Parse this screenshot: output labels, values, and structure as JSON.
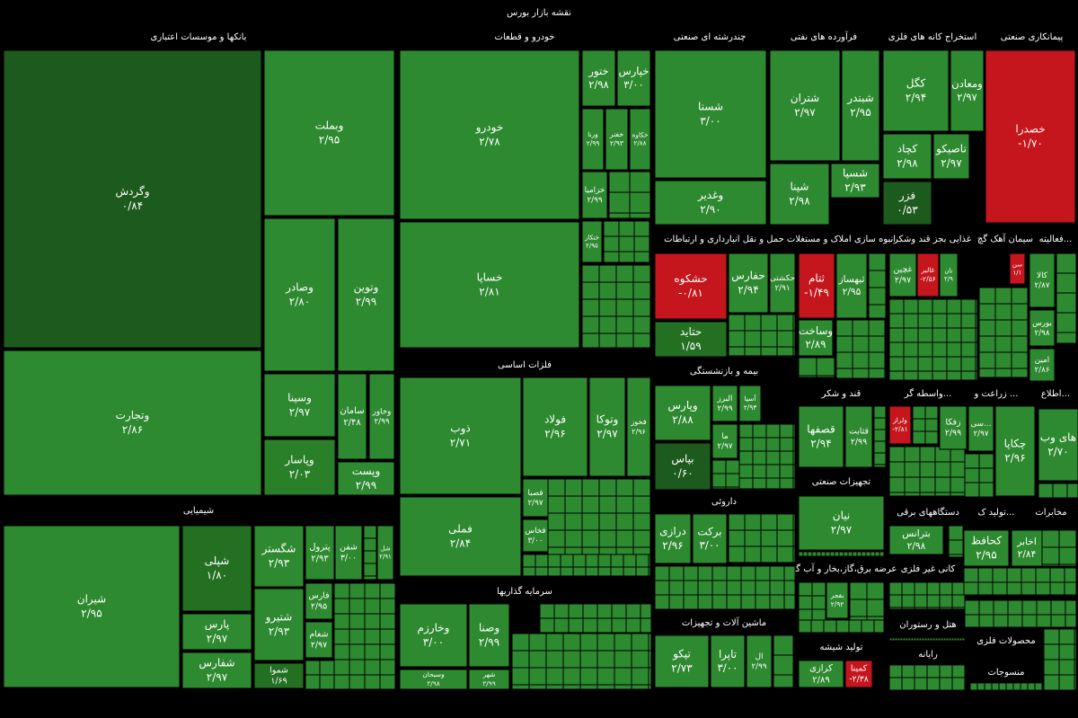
{
  "chart_data": {
    "type": "treemap",
    "title": "نقشه بازار بورس",
    "groups": [
      {
        "name": "بانکها و موسسات اعتباری",
        "tiles": [
          {
            "name": "وگردش",
            "value": 0.84,
            "value_label": "۰/۸۴",
            "color": "#1d5a1d"
          },
          {
            "name": "وتجارت",
            "value": 2.86,
            "value_label": "۲/۸۶",
            "color": "#2e8a30"
          },
          {
            "name": "وبملت",
            "value": 2.95,
            "value_label": "۲/۹۵",
            "color": "#2e8a30"
          },
          {
            "name": "وصادر",
            "value": 2.8,
            "value_label": "۲/۸۰",
            "color": "#2e8a30"
          },
          {
            "name": "وتوین",
            "value": 2.99,
            "value_label": "۲/۹۹",
            "color": "#2e8a30"
          },
          {
            "name": "وسینا",
            "value": 2.97,
            "value_label": "۲/۹۷",
            "color": "#2e8a30"
          },
          {
            "name": "سامان",
            "value": 2.48,
            "value_label": "۲/۴۸",
            "color": "#2e8a30"
          },
          {
            "name": "وخاور",
            "value": 2.99,
            "value_label": "۲/۹۹",
            "color": "#2e8a30"
          },
          {
            "name": "وپاسار",
            "value": 2.03,
            "value_label": "۲/۰۳",
            "color": "#2a8029"
          },
          {
            "name": "وپست",
            "value": 2.99,
            "value_label": "۲/۹۹",
            "color": "#2e8a30"
          }
        ]
      },
      {
        "name": "خودرو و قطعات",
        "tiles": [
          {
            "name": "خودرو",
            "value": 2.78,
            "value_label": "۲/۷۸",
            "color": "#2e8a30"
          },
          {
            "name": "خساپا",
            "value": 2.81,
            "value_label": "۲/۸۱",
            "color": "#2e8a30"
          },
          {
            "name": "ختور",
            "value": 2.98,
            "value_label": "۲/۹۸",
            "color": "#2e8a30"
          },
          {
            "name": "خپارس",
            "value": 3.0,
            "value_label": "۳/۰۰",
            "color": "#2e8a30"
          },
          {
            "name": "ورنا",
            "value": 2.99,
            "value_label": "۲/۹۹",
            "color": "#2e8a30"
          },
          {
            "name": "خفنر",
            "value": 2.93,
            "value_label": "۲/۹۳",
            "color": "#2e8a30"
          },
          {
            "name": "خکاوه",
            "value": 2.88,
            "value_label": "۲/۸۸",
            "color": "#2e8a30"
          },
          {
            "name": "خزامیا",
            "value": 2.99,
            "value_label": "۲/۹۹",
            "color": "#2e8a30"
          },
          {
            "name": "ختکار",
            "value": 2.95,
            "value_label": "۲/۹۵",
            "color": "#2e8a30"
          }
        ]
      },
      {
        "name": "چندرشته ای صنعتی",
        "tiles": [
          {
            "name": "شستا",
            "value": 3.0,
            "value_label": "۳/۰۰",
            "color": "#2e8a30"
          },
          {
            "name": "وغدیر",
            "value": 2.9,
            "value_label": "۲/۹۰",
            "color": "#2e8a30"
          }
        ]
      },
      {
        "name": "فرآورده های نفتی",
        "tiles": [
          {
            "name": "شتران",
            "value": 2.97,
            "value_label": "۲/۹۷",
            "color": "#2e8a30"
          },
          {
            "name": "شبندر",
            "value": 2.95,
            "value_label": "۲/۹۵",
            "color": "#2e8a30"
          },
          {
            "name": "شپنا",
            "value": 2.98,
            "value_label": "۲/۹۸",
            "color": "#2e8a30"
          },
          {
            "name": "شسپا",
            "value": 2.93,
            "value_label": "۲/۹۳",
            "color": "#2e8a30"
          }
        ]
      },
      {
        "name": "استخراج کانه های فلزی",
        "tiles": [
          {
            "name": "کگل",
            "value": 2.94,
            "value_label": "۲/۹۴",
            "color": "#2e8a30"
          },
          {
            "name": "ومعادن",
            "value": 2.97,
            "value_label": "۲/۹۷",
            "color": "#2e8a30"
          },
          {
            "name": "کچاد",
            "value": 2.98,
            "value_label": "۲/۹۸",
            "color": "#2e8a30"
          },
          {
            "name": "تاصیکو",
            "value": 2.97,
            "value_label": "۲/۹۷",
            "color": "#2e8a30"
          },
          {
            "name": "فزر",
            "value": 0.53,
            "value_label": "۰/۵۳",
            "color": "#1d5a1d"
          }
        ]
      },
      {
        "name": "پیمانکاری صنعتی",
        "tiles": [
          {
            "name": "خصدرا",
            "value": -1.7,
            "value_label": "-۱/۷۰",
            "color": "#c4161c"
          }
        ]
      },
      {
        "name": "حمل و نقل انبارداری و ارتباطات",
        "tiles": [
          {
            "name": "حشکوه",
            "value": -0.81,
            "value_label": "-۰/۸۱",
            "color": "#c4161c"
          },
          {
            "name": "حفارس",
            "value": 2.94,
            "value_label": "۲/۹۴",
            "color": "#2e8a30"
          },
          {
            "name": "حکشتی",
            "value": 2.91,
            "value_label": "۲/۹۱",
            "color": "#2e8a30"
          },
          {
            "name": "حتاید",
            "value": 1.59,
            "value_label": "۱/۵۹",
            "color": "#237023"
          }
        ]
      },
      {
        "name": "انبوه سازی املاک و مستغلات",
        "tiles": [
          {
            "name": "ثتام",
            "value": -1.49,
            "value_label": "-۱/۴۹",
            "color": "#c4161c"
          },
          {
            "name": "ثبهساز",
            "value": 2.95,
            "value_label": "۲/۹۵",
            "color": "#2e8a30"
          },
          {
            "name": "وساخت",
            "value": 2.89,
            "value_label": "۲/۸۹",
            "color": "#2e8a30"
          }
        ]
      },
      {
        "name": "غذایی بجز قند وشکر",
        "tiles": [
          {
            "name": "غچین",
            "value": 2.97,
            "value_label": "۲/۹۷",
            "color": "#2e8a30"
          },
          {
            "name": "غالبر",
            "value": -2.56,
            "value_label": "-۲/۵۶",
            "color": "#c4161c"
          },
          {
            "name": "نان",
            "value": 2.9,
            "value_label": "۲/۹",
            "color": "#2e8a30"
          }
        ]
      },
      {
        "name": "سیمان آهک گچ",
        "tiles": [
          {
            "name": "سن",
            "value": 1.1,
            "value_label": "۱/۱",
            "color": "#c4161c"
          }
        ]
      },
      {
        "name": "فعالیته...",
        "tiles": [
          {
            "name": "کالا",
            "value": 2.87,
            "value_label": "۲/۸۷",
            "color": "#2e8a30"
          },
          {
            "name": "بورس",
            "value": 2.98,
            "value_label": "۲/۹۸",
            "color": "#2e8a30"
          },
          {
            "name": "امین",
            "value": 2.86,
            "value_label": "۲/۸۶",
            "color": "#2e8a30"
          }
        ]
      },
      {
        "name": "فلزات اساسی",
        "tiles": [
          {
            "name": "ذوب",
            "value": 2.71,
            "value_label": "۲/۷۱",
            "color": "#2e8a30"
          },
          {
            "name": "فولاد",
            "value": 2.96,
            "value_label": "۲/۹۶",
            "color": "#2e8a30"
          },
          {
            "name": "وتوکا",
            "value": 2.97,
            "value_label": "۲/۹۷",
            "color": "#2e8a30"
          },
          {
            "name": "فخوز",
            "value": 2.96,
            "value_label": "۲/۹۶",
            "color": "#2e8a30"
          },
          {
            "name": "فملی",
            "value": 2.84,
            "value_label": "۲/۸۴",
            "color": "#2e8a30"
          },
          {
            "name": "فصبا",
            "value": 2.97,
            "value_label": "۲/۹۷",
            "color": "#2e8a30"
          },
          {
            "name": "فخاس",
            "value": 3.0,
            "value_label": "۳/۰۰",
            "color": "#2e8a30"
          }
        ]
      },
      {
        "name": "بیمه و بازنشستگی",
        "tiles": [
          {
            "name": "وپارس",
            "value": 2.88,
            "value_label": "۲/۸۸",
            "color": "#2e8a30"
          },
          {
            "name": "البرز",
            "value": 2.99,
            "value_label": "۲/۹۹",
            "color": "#2e8a30"
          },
          {
            "name": "آسیا",
            "value": 2.93,
            "value_label": "۲/۹۳",
            "color": "#2e8a30"
          },
          {
            "name": "بپاس",
            "value": 0.6,
            "value_label": "۰/۶۰",
            "color": "#1d5a1d"
          },
          {
            "name": "ما",
            "value": 2.97,
            "value_label": "۲/۹۷",
            "color": "#2e8a30"
          }
        ]
      },
      {
        "name": "قند و شکر",
        "tiles": [
          {
            "name": "قصفها",
            "value": 2.94,
            "value_label": "۲/۹۴",
            "color": "#2e8a30"
          },
          {
            "name": "قثابت",
            "value": 2.99,
            "value_label": "۲/۹۹",
            "color": "#2e8a30"
          }
        ]
      },
      {
        "name": "واسطه گر...",
        "tiles": [
          {
            "name": "ولراز",
            "value": -2.81,
            "value_label": "-۲/۸۱",
            "color": "#c4161c"
          },
          {
            "name": "زفکا",
            "value": 2.99,
            "value_label": "۲/۹۹",
            "color": "#2e8a30"
          }
        ]
      },
      {
        "name": "زراعت و ...",
        "tiles": [
          {
            "name": "سی...",
            "value": 2.97,
            "value_label": "۲/۹۷",
            "color": "#2e8a30"
          },
          {
            "name": "چکاپا",
            "value": 2.96,
            "value_label": "۲/۹۶",
            "color": "#2e8a30"
          }
        ]
      },
      {
        "name": "اطلاع...",
        "tiles": [
          {
            "name": "های وب",
            "value": 2.7,
            "value_label": "۲/۷۰",
            "color": "#2e8a30"
          }
        ]
      },
      {
        "name": "داروئی",
        "tiles": [
          {
            "name": "درازی",
            "value": 2.96,
            "value_label": "۲/۹۶",
            "color": "#2e8a30"
          },
          {
            "name": "برکت",
            "value": 3.0,
            "value_label": "۳/۰۰",
            "color": "#2e8a30"
          }
        ]
      },
      {
        "name": "تجهیزات صنعتی",
        "tiles": [
          {
            "name": "نیان",
            "value": 2.97,
            "value_label": "۲/۹۷",
            "color": "#2e8a30"
          }
        ]
      },
      {
        "name": "دستگاههای برقی",
        "tiles": [
          {
            "name": "بترانس",
            "value": 2.98,
            "value_label": "۲/۹۸",
            "color": "#2e8a30"
          }
        ]
      },
      {
        "name": "تولید ک...",
        "tiles": [
          {
            "name": "کحافظ",
            "value": 2.95,
            "value_label": "۲/۹۵",
            "color": "#2e8a30"
          }
        ]
      },
      {
        "name": "مخابرات",
        "tiles": [
          {
            "name": "اخابر",
            "value": 2.84,
            "value_label": "۲/۸۴",
            "color": "#2e8a30"
          }
        ]
      },
      {
        "name": "شیمیایی",
        "tiles": [
          {
            "name": "شیران",
            "value": 2.95,
            "value_label": "۲/۹۵",
            "color": "#2e8a30"
          },
          {
            "name": "شپلی",
            "value": 1.8,
            "value_label": "۱/۸۰",
            "color": "#237023"
          },
          {
            "name": "پارس",
            "value": 2.97,
            "value_label": "۲/۹۷",
            "color": "#2e8a30"
          },
          {
            "name": "شفارس",
            "value": 2.97,
            "value_label": "۲/۹۷",
            "color": "#2e8a30"
          },
          {
            "name": "شگستر",
            "value": 2.93,
            "value_label": "۲/۹۳",
            "color": "#2e8a30"
          },
          {
            "name": "شتیرو",
            "value": 2.93,
            "value_label": "۲/۹۳",
            "color": "#2e8a30"
          },
          {
            "name": "شموا",
            "value": 1.69,
            "value_label": "۱/۶۹",
            "color": "#237023"
          },
          {
            "name": "پترول",
            "value": 2.93,
            "value_label": "۲/۹۳",
            "color": "#2e8a30"
          },
          {
            "name": "شفن",
            "value": 3.0,
            "value_label": "۳/۰۰",
            "color": "#2e8a30"
          },
          {
            "name": "شل",
            "value": 2.91,
            "value_label": "۲/۹۱",
            "color": "#2e8a30"
          },
          {
            "name": "فارس",
            "value": 2.95,
            "value_label": "۲/۹۵",
            "color": "#2e8a30"
          },
          {
            "name": "شغام",
            "value": 2.97,
            "value_label": "۲/۹۷",
            "color": "#2e8a30"
          }
        ]
      },
      {
        "name": "سرمایه گذاریها",
        "tiles": [
          {
            "name": "وخارزم",
            "value": 3.0,
            "value_label": "۳/۰۰",
            "color": "#2e8a30"
          },
          {
            "name": "وصنا",
            "value": 2.99,
            "value_label": "۲/۹۹",
            "color": "#2e8a30"
          },
          {
            "name": "وسبحان",
            "value": 2.98,
            "value_label": "۲/۹۸",
            "color": "#2e8a30"
          },
          {
            "name": "شهر",
            "value": 2.99,
            "value_label": "۲/۹۹",
            "color": "#2e8a30"
          }
        ]
      },
      {
        "name": "ماشین آلات و تجهیزات",
        "tiles": [
          {
            "name": "تپکو",
            "value": 2.73,
            "value_label": "۲/۷۳",
            "color": "#2e8a30"
          },
          {
            "name": "تاپرا",
            "value": 3.0,
            "value_label": "۳/۰۰",
            "color": "#2e8a30"
          },
          {
            "name": "ال",
            "value": 2.99,
            "value_label": "۲/۹۹",
            "color": "#2e8a30"
          }
        ]
      },
      {
        "name": "عرضه برق،گاز،بخار و آب گرم",
        "tiles": [
          {
            "name": "بفجر",
            "value": 2.92,
            "value_label": "۲/۹۲",
            "color": "#2e8a30"
          }
        ]
      },
      {
        "name": "کانی غیر فلزی",
        "tiles": []
      },
      {
        "name": "تولید شیشه",
        "tiles": [
          {
            "name": "کرازی",
            "value": 2.89,
            "value_label": "۲/۸۹",
            "color": "#2e8a30"
          },
          {
            "name": "کمینا",
            "value": -2.38,
            "value_label": "-۲/۳۸",
            "color": "#c4161c"
          }
        ]
      },
      {
        "name": "هتل و رستوران",
        "tiles": []
      },
      {
        "name": "رایانه",
        "tiles": []
      },
      {
        "name": "محصولات فلزی",
        "tiles": []
      },
      {
        "name": "منسوجات",
        "tiles": []
      }
    ]
  }
}
